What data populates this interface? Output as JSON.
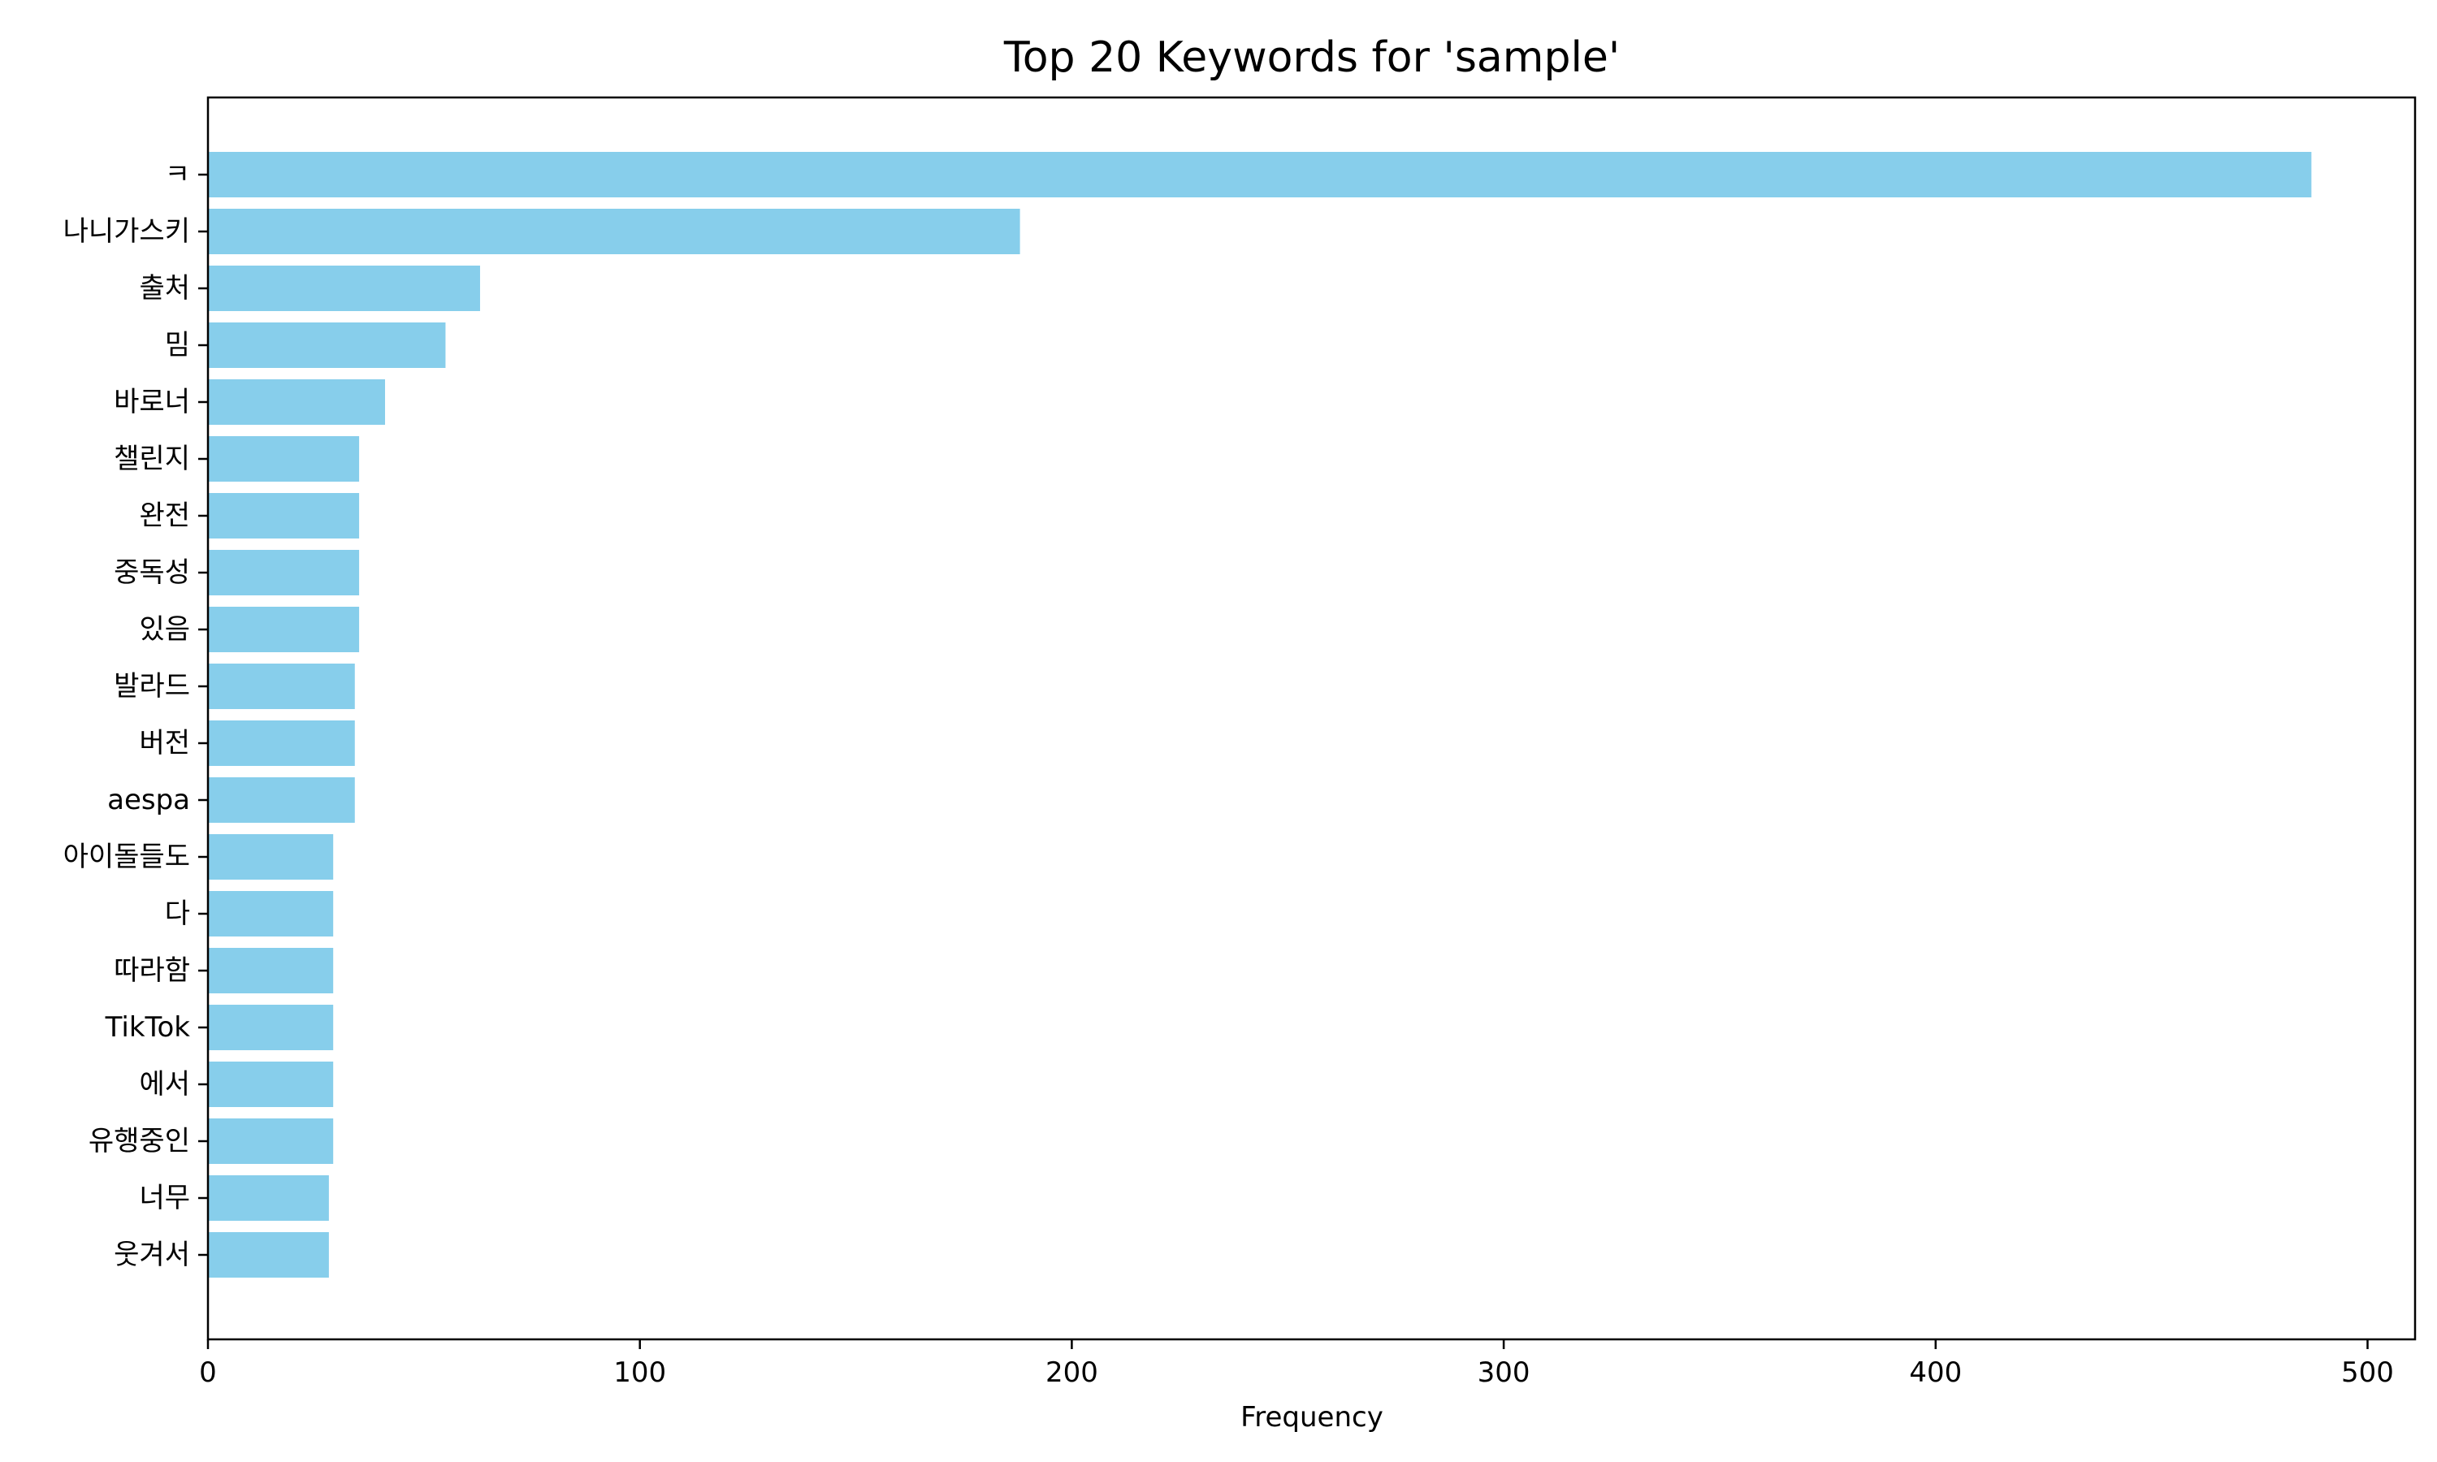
{
  "chart_data": {
    "type": "bar",
    "orientation": "horizontal",
    "title": "Top 20 Keywords for 'sample'",
    "xlabel": "Frequency",
    "ylabel": "",
    "xlim": [
      0,
      511
    ],
    "xticks": [
      0,
      100,
      200,
      300,
      400,
      500
    ],
    "grid": false,
    "legend": "none",
    "bar_color": "#87CEEB",
    "categories": [
      "ㅋ",
      "나니가스키",
      "출처",
      "밈",
      "바로너",
      "챌린지",
      "완전",
      "중독성",
      "있음",
      "발라드",
      "버전",
      "aespa",
      "아이돌들도",
      "다",
      "따라함",
      "TikTok",
      "에서",
      "유행중인",
      "너무",
      "웃겨서"
    ],
    "values": [
      487,
      188,
      63,
      55,
      41,
      35,
      35,
      35,
      35,
      34,
      34,
      34,
      29,
      29,
      29,
      29,
      29,
      29,
      28,
      28
    ]
  }
}
